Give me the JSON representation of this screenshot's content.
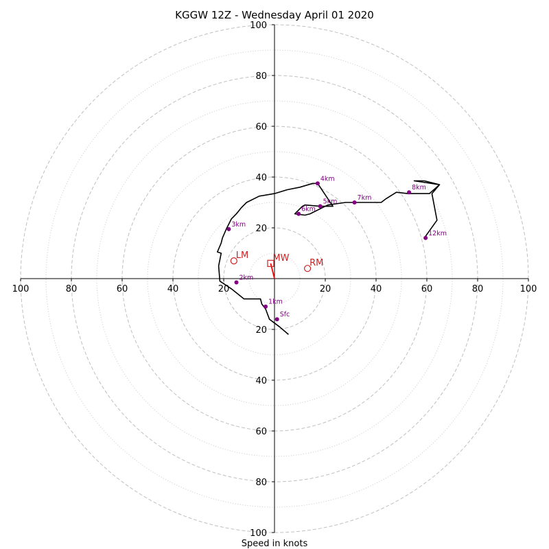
{
  "chart_data": {
    "type": "scatter",
    "chart_kind": "hodograph",
    "title": "KGGW 12Z - Wednesday April 01 2020",
    "xlabel": "Speed in knots",
    "ylabel": "",
    "xlim": [
      -100,
      100
    ],
    "ylim": [
      -100,
      100
    ],
    "solid_rings": [
      20,
      40,
      60,
      80,
      100
    ],
    "dotted_rings": [
      10,
      30,
      50,
      70,
      90
    ],
    "grid": true,
    "tick_values": [
      20,
      40,
      60,
      80,
      100
    ],
    "x_tick_labels": [
      "100",
      "80",
      "60",
      "40",
      "20",
      "20",
      "40",
      "60",
      "80",
      "100"
    ],
    "y_tick_labels": [
      "100",
      "80",
      "60",
      "40",
      "20",
      "20",
      "40",
      "60",
      "80",
      "100"
    ],
    "hodograph": {
      "color": "#000000",
      "x": [
        5.5,
        2,
        -2,
        -3.5,
        -5,
        -5.5,
        -12,
        -17,
        -21.5,
        -22,
        -21,
        -22.5,
        -21,
        -20.5,
        -19,
        -17,
        -15,
        -13,
        -11,
        -6,
        0,
        5,
        10,
        15,
        17,
        23,
        18,
        12,
        11,
        8,
        12,
        14,
        21,
        28,
        31.5,
        42,
        44,
        48,
        52.5,
        55,
        61,
        65,
        59,
        55,
        55,
        65,
        62,
        64,
        59
      ],
      "y": [
        -22,
        -19,
        -16,
        -12,
        -10,
        -8,
        -8,
        -4,
        -1,
        5,
        10,
        10.5,
        14,
        16,
        19.5,
        23.5,
        25.5,
        28,
        30,
        32.5,
        33.5,
        35,
        36,
        37.5,
        37.5,
        28.5,
        28.5,
        29,
        28.5,
        25.5,
        25,
        25.5,
        29,
        30,
        30,
        30,
        31.5,
        34,
        33.5,
        33.5,
        33.5,
        37,
        38.5,
        38.5,
        38.5,
        37,
        33.5,
        23,
        16
      ]
    },
    "height_markers": [
      {
        "label": "Sfc",
        "x": 1,
        "y": -16
      },
      {
        "label": "1km",
        "x": -3.5,
        "y": -11
      },
      {
        "label": "2km",
        "x": -15,
        "y": -1.5
      },
      {
        "label": "3km",
        "x": -18,
        "y": 19.5
      },
      {
        "label": "4km",
        "x": 17,
        "y": 37.5
      },
      {
        "label": "5km",
        "x": 18,
        "y": 28.5
      },
      {
        "label": "6km",
        "x": 9.5,
        "y": 25.5
      },
      {
        "label": "7km",
        "x": 31.5,
        "y": 30
      },
      {
        "label": "8km",
        "x": 53,
        "y": 34
      },
      {
        "label": "12km",
        "x": 59.5,
        "y": 16
      }
    ],
    "storm_motions": [
      {
        "label": "LM",
        "x": -16,
        "y": 7,
        "marker": "circle"
      },
      {
        "label": "RM",
        "x": 13,
        "y": 4,
        "marker": "circle"
      },
      {
        "label": "MW",
        "x": -1.5,
        "y": 6,
        "marker": "square"
      }
    ],
    "shear_vector": {
      "from": [
        0,
        0
      ],
      "to": [
        -1.5,
        6
      ],
      "color": "#ff0000"
    },
    "colors": {
      "trace": "#000000",
      "height_marker": "#800080",
      "storm_motion": "#cc2222",
      "shear_vector": "#ff0000",
      "grid": "#bfbfbf"
    }
  }
}
